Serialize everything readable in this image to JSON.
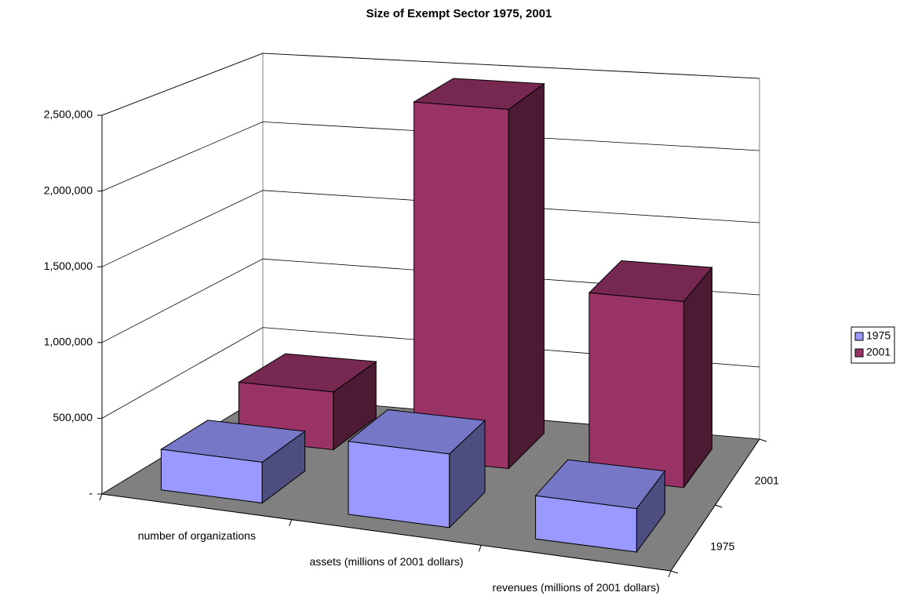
{
  "chart_data": {
    "type": "bar3d",
    "title": "Size of Exempt Sector 1975, 2001",
    "categories": [
      "number of organizations",
      "assets (millions of 2001 dollars)",
      "revenues (millions of 2001 dollars)"
    ],
    "series": [
      {
        "name": "1975",
        "color": "#9999ff",
        "values": [
          270000,
          480000,
          280000
        ]
      },
      {
        "name": "2001",
        "color": "#993366",
        "values": [
          400000,
          2450000,
          1250000
        ]
      }
    ],
    "ylim": [
      0,
      2500000
    ],
    "yticks": [
      {
        "value": 0,
        "label": "-"
      },
      {
        "value": 500000,
        "label": "500,000"
      },
      {
        "value": 1000000,
        "label": "1,000,000"
      },
      {
        "value": 1500000,
        "label": "1,500,000"
      },
      {
        "value": 2000000,
        "label": "2,000,000"
      },
      {
        "value": 2500000,
        "label": "2,500,000"
      }
    ],
    "grid": true,
    "legend": "right"
  }
}
